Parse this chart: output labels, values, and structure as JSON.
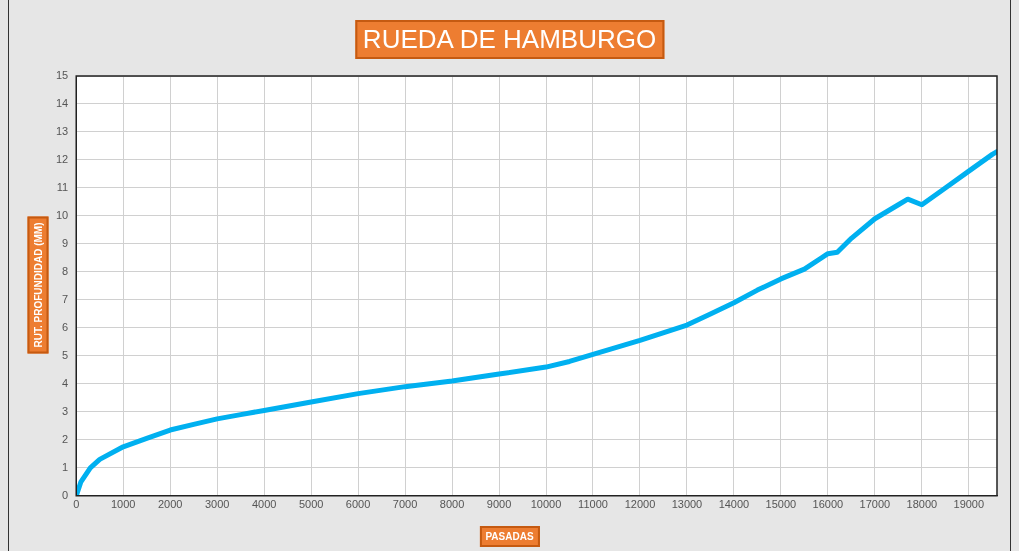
{
  "chart_data": {
    "type": "line",
    "title": "RUEDA DE HAMBURGO",
    "xlabel": "PASADAS",
    "ylabel": "RUT. PROFUNDIDAD (MM)",
    "x": [
      0,
      100,
      300,
      500,
      1000,
      1500,
      2000,
      2500,
      3000,
      3500,
      4000,
      5000,
      6000,
      7000,
      8000,
      9000,
      10000,
      10500,
      11000,
      12000,
      13000,
      13500,
      14000,
      14500,
      15000,
      15500,
      16000,
      16200,
      16500,
      17000,
      17500,
      17700,
      18000,
      18500,
      19000,
      19500,
      19600
    ],
    "series": [
      {
        "color": "#00b0f0",
        "values": [
          0,
          0.5,
          1.0,
          1.3,
          1.75,
          2.05,
          2.35,
          2.55,
          2.75,
          2.9,
          3.05,
          3.35,
          3.65,
          3.9,
          4.1,
          4.35,
          4.6,
          4.8,
          5.05,
          5.55,
          6.1,
          6.5,
          6.9,
          7.35,
          7.75,
          8.1,
          8.65,
          8.7,
          9.2,
          9.9,
          10.4,
          10.6,
          10.4,
          11.0,
          11.6,
          12.2,
          12.3
        ]
      }
    ],
    "xlim": [
      0,
      19600
    ],
    "xticks": [
      0,
      1000,
      2000,
      3000,
      4000,
      5000,
      6000,
      7000,
      8000,
      9000,
      10000,
      11000,
      12000,
      13000,
      14000,
      15000,
      16000,
      17000,
      18000,
      19000
    ],
    "ylim": [
      0,
      15
    ],
    "yticks": [
      0,
      1,
      2,
      3,
      4,
      5,
      6,
      7,
      8,
      9,
      10,
      11,
      12,
      13,
      14,
      15
    ],
    "grid": true,
    "marker": "none",
    "line_style": "solid"
  }
}
